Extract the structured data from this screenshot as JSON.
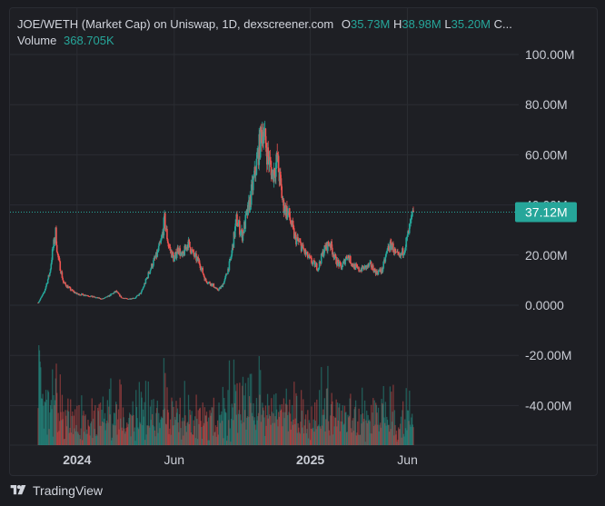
{
  "legend": {
    "title": "JOE/WETH (Market Cap) on Uniswap, 1D, dexscreener.com",
    "open_label": "O",
    "open_value": "35.73M",
    "high_label": "H",
    "high_value": "38.98M",
    "low_label": "L",
    "low_value": "35.20M",
    "close_label": "C...",
    "volume_label": "Volume",
    "volume_value": "368.705K"
  },
  "footer": {
    "brand": "TradingView"
  },
  "colors": {
    "up": "#26a69a",
    "down": "#ef5350",
    "grid": "#2b2d33",
    "price_tag": "#26a69a",
    "background": "#1e1f24"
  },
  "chart_data": {
    "type": "candlestick",
    "title": "JOE/WETH (Market Cap) on Uniswap, 1D, dexscreener.com",
    "timeframe": "1D",
    "y_axis": {
      "ticks": [
        "100.00M",
        "80.00M",
        "60.00M",
        "40.00M",
        "20.00M",
        "0.0000",
        "-20.00M",
        "-40.00M"
      ],
      "tick_values": [
        100,
        80,
        60,
        40,
        20,
        0,
        -20,
        -40
      ],
      "range": [
        -55,
        108
      ],
      "unit": "M"
    },
    "x_axis": {
      "labels": [
        {
          "text": "2024",
          "month": 12,
          "bold": true
        },
        {
          "text": "Jun",
          "month": 17,
          "bold": false
        },
        {
          "text": "2025",
          "month": 24,
          "bold": true
        },
        {
          "text": "Jun",
          "month": 29,
          "bold": false
        }
      ],
      "range_months": [
        8,
        31.4
      ]
    },
    "last_price": "37.12M",
    "last_value": 37.12,
    "market_cap_keypoints_month_value": [
      [
        10.0,
        1.0
      ],
      [
        10.3,
        5
      ],
      [
        10.6,
        13
      ],
      [
        10.75,
        22
      ],
      [
        10.9,
        29
      ],
      [
        11.0,
        20
      ],
      [
        11.3,
        9
      ],
      [
        11.7,
        6
      ],
      [
        12.0,
        4.5
      ],
      [
        12.5,
        4
      ],
      [
        13.0,
        3
      ],
      [
        13.3,
        2.5
      ],
      [
        13.6,
        3.5
      ],
      [
        14.0,
        5.5
      ],
      [
        14.3,
        3
      ],
      [
        14.6,
        2.5
      ],
      [
        15.0,
        3
      ],
      [
        15.3,
        5
      ],
      [
        15.5,
        9
      ],
      [
        15.8,
        15
      ],
      [
        16.1,
        20
      ],
      [
        16.35,
        26
      ],
      [
        16.5,
        34
      ],
      [
        16.7,
        24
      ],
      [
        17.0,
        18
      ],
      [
        17.2,
        23
      ],
      [
        17.4,
        19
      ],
      [
        17.7,
        25
      ],
      [
        18.0,
        20
      ],
      [
        18.3,
        17
      ],
      [
        18.6,
        10
      ],
      [
        19.0,
        8
      ],
      [
        19.2,
        6
      ],
      [
        19.4,
        7
      ],
      [
        19.6,
        10
      ],
      [
        19.9,
        18
      ],
      [
        20.2,
        34
      ],
      [
        20.5,
        28
      ],
      [
        20.8,
        38
      ],
      [
        21.1,
        50
      ],
      [
        21.35,
        62
      ],
      [
        21.55,
        71
      ],
      [
        21.8,
        60
      ],
      [
        22.05,
        52
      ],
      [
        22.3,
        58
      ],
      [
        22.6,
        40
      ],
      [
        22.9,
        36
      ],
      [
        23.2,
        27
      ],
      [
        23.5,
        24
      ],
      [
        23.8,
        20
      ],
      [
        24.1,
        17
      ],
      [
        24.4,
        15
      ],
      [
        24.7,
        22
      ],
      [
        25.0,
        25
      ],
      [
        25.3,
        18
      ],
      [
        25.6,
        15
      ],
      [
        25.9,
        20
      ],
      [
        26.2,
        16
      ],
      [
        26.5,
        14
      ],
      [
        26.8,
        15
      ],
      [
        27.1,
        16
      ],
      [
        27.4,
        13
      ],
      [
        27.7,
        14
      ],
      [
        28.0,
        23
      ],
      [
        28.2,
        24
      ],
      [
        28.4,
        20
      ],
      [
        28.6,
        19
      ],
      [
        28.8,
        22
      ],
      [
        29.0,
        27
      ],
      [
        29.15,
        32
      ],
      [
        29.3,
        37.12
      ]
    ],
    "volume": {
      "bars_height_fraction": 0.38,
      "baseline": "bottom of plot"
    }
  }
}
